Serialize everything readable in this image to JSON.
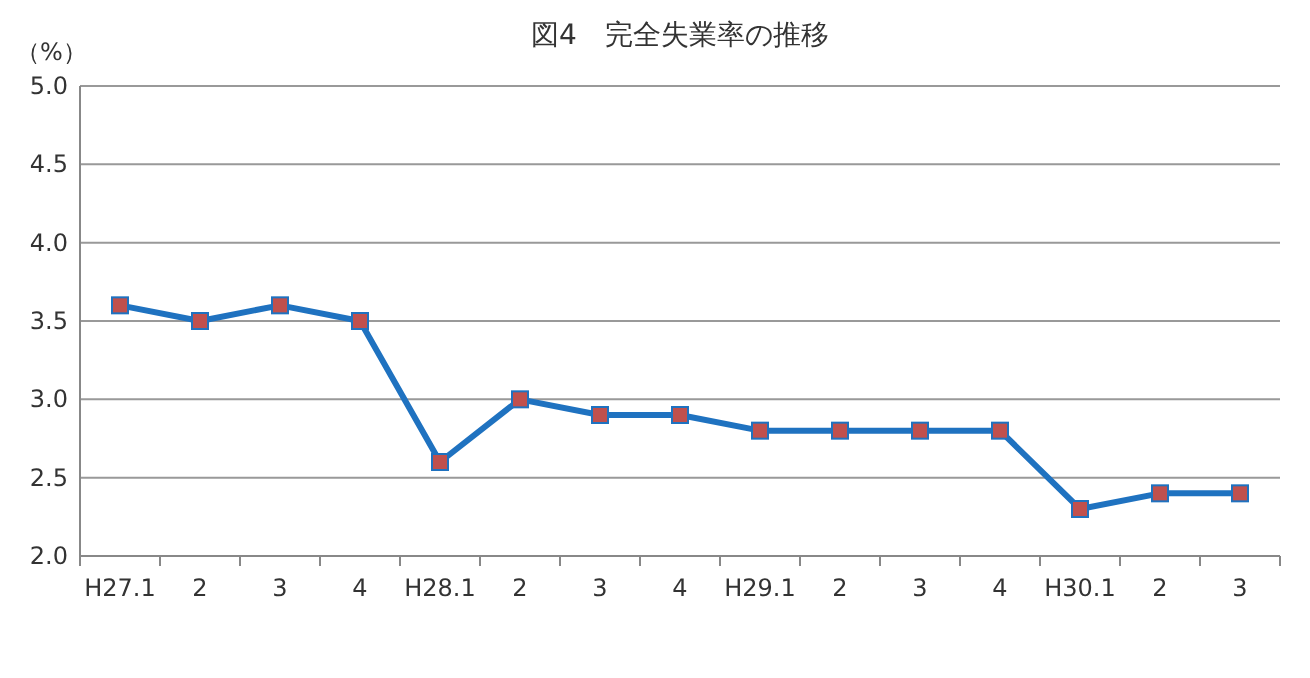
{
  "chart_data": {
    "type": "line",
    "title": "図4　完全失業率の推移",
    "ylabel": "（%）",
    "categories": [
      "H27.1",
      "2",
      "3",
      "4",
      "H28.1",
      "2",
      "3",
      "4",
      "H29.1",
      "2",
      "3",
      "4",
      "H30.1",
      "2",
      "3"
    ],
    "series": [
      {
        "color": "#1f72c0",
        "colors": [
          "#c0504d",
          "#c0504d",
          "#c0504d",
          "#c0504d",
          "#c0504d",
          "#c0504d",
          "#c0504d",
          "#c0504d",
          "#c0504d",
          "#c0504d",
          "#c0504d",
          "#c0504d",
          "#c0504d",
          "#c0504d",
          "#c0504d"
        ],
        "values": [
          3.6,
          3.5,
          3.6,
          3.5,
          2.6,
          3.0,
          2.9,
          2.9,
          2.8,
          2.8,
          2.8,
          2.8,
          2.3,
          2.4,
          2.4
        ]
      }
    ],
    "ylim": [
      2.0,
      5.0
    ],
    "yticks": [
      {
        "value": 2.0,
        "label": "2.0"
      },
      {
        "value": 2.5,
        "label": "2.5"
      },
      {
        "value": 3.0,
        "label": "3.0"
      },
      {
        "value": 3.5,
        "label": "3.5"
      },
      {
        "value": 4.0,
        "label": "4.0"
      },
      {
        "value": 4.5,
        "label": "4.5"
      },
      {
        "value": 5.0,
        "label": "5.0"
      }
    ],
    "grid": "y",
    "marker": "square",
    "line_style": "solid"
  }
}
